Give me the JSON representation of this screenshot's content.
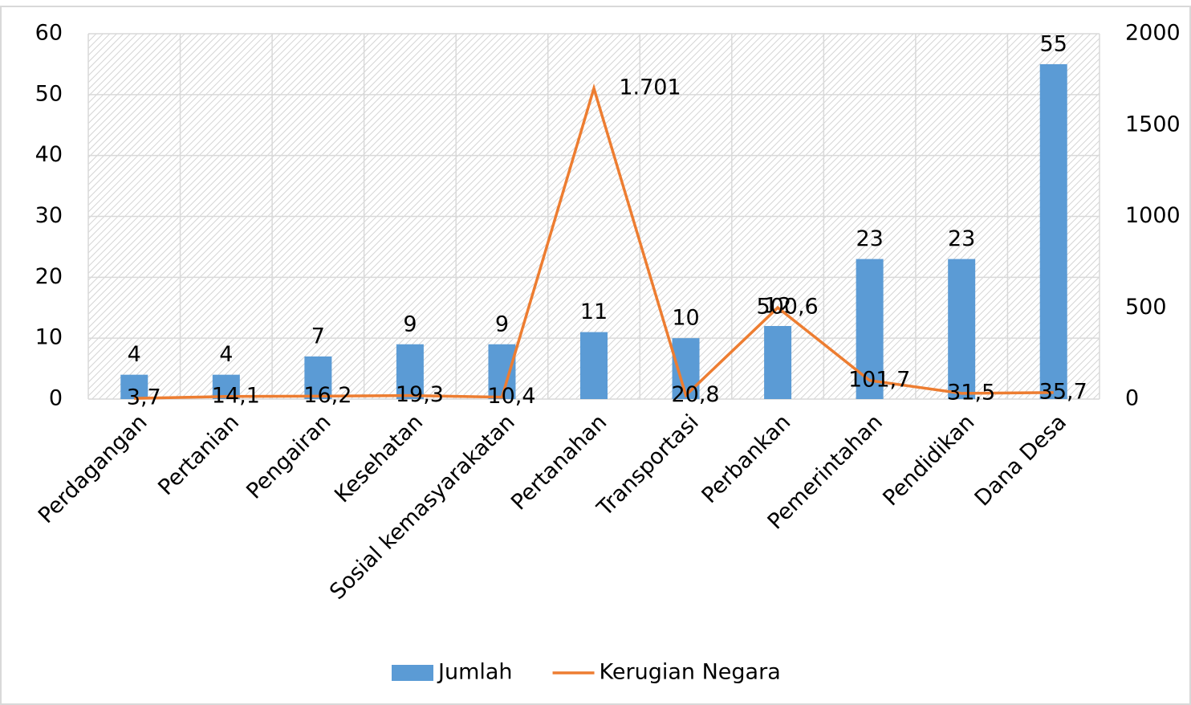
{
  "chart_data": {
    "type": "bar",
    "categories": [
      "Perdagangan",
      "Pertanian",
      "Pengairan",
      "Kesehatan",
      "Sosial kemasyarakatan",
      "Pertanahan",
      "Transportasi",
      "Perbankan",
      "Pemerintahan",
      "Pendidikan",
      "Dana Desa"
    ],
    "series": [
      {
        "name": "Jumlah",
        "color": "#5b9bd5",
        "values": [
          4,
          4,
          7,
          9,
          9,
          11,
          10,
          12,
          23,
          23,
          55
        ]
      },
      {
        "name": "Kerugian Negara",
        "color": "#ed7d31",
        "type": "line",
        "axis": "y2",
        "values": [
          3.7,
          14.1,
          16.2,
          19.3,
          10.4,
          1701,
          20.8,
          500.6,
          101.7,
          31.5,
          35.7
        ],
        "value_labels": [
          "3,7",
          "14,1",
          "16,2",
          "19,3",
          "10,4",
          "1.701",
          "20,8",
          "500,6",
          "101,7",
          "31,5",
          "35,7"
        ]
      }
    ],
    "ylim": [
      0,
      60
    ],
    "yticks": [
      0,
      10,
      20,
      30,
      40,
      50,
      60
    ],
    "y2lim": [
      0,
      2000
    ],
    "y2ticks": [
      0,
      500,
      1000,
      1500,
      2000
    ],
    "grid": true,
    "legend": "bottom"
  }
}
